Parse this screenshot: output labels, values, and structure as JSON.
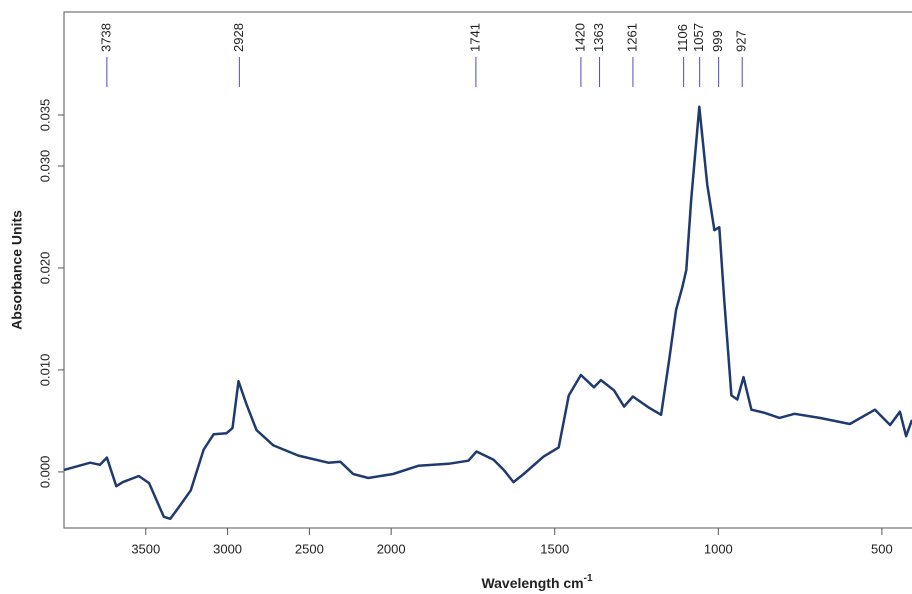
{
  "chart_data": {
    "type": "line",
    "x_label": {
      "text": "Wavelength cm",
      "superscript": "-1"
    },
    "y_label": "Absorbance Units",
    "xlim": [
      4000,
      408
    ],
    "ylim": [
      -0.0055,
      0.0451
    ],
    "x_break": {
      "at": 2000,
      "factor": 0.5
    },
    "xticks": [
      3500,
      3000,
      2500,
      2000,
      1500,
      1000,
      500
    ],
    "yticks": [
      {
        "value": 0,
        "label": "0.000"
      },
      {
        "value": 0.01,
        "label": "0.010"
      },
      {
        "value": 0.02,
        "label": "0.020"
      },
      {
        "value": 0.03,
        "label": "0.030"
      },
      {
        "value": 0.035,
        "label": "0.035"
      }
    ],
    "peaks": [
      3738,
      2928,
      1741,
      1420,
      1363,
      1261,
      1106,
      1057,
      999,
      927
    ],
    "peak_color": "#4b4bc8",
    "series": [
      {
        "color": "#1f3a6e",
        "x": [
          4000,
          3840,
          3780,
          3738,
          3680,
          3640,
          3543,
          3480,
          3390,
          3350,
          3300,
          3225,
          3146,
          3085,
          3006,
          2970,
          2933,
          2884,
          2823,
          2720,
          2567,
          2384,
          2311,
          2232,
          2140,
          1994,
          1917,
          1825,
          1764,
          1739,
          1687,
          1656,
          1626,
          1595,
          1534,
          1488,
          1457,
          1420,
          1380,
          1359,
          1319,
          1288,
          1261,
          1212,
          1175,
          1150,
          1129,
          1110,
          1098,
          1083,
          1058,
          1034,
          1012,
          997,
          982,
          960,
          942,
          923,
          899,
          859,
          813,
          767,
          690,
          598,
          521,
          475,
          445,
          426,
          408
        ],
        "values": [
          0.0002,
          0.0009,
          0.0007,
          0.0014,
          -0.0014,
          -0.001,
          -0.0004,
          -0.0011,
          -0.0044,
          -0.0046,
          -0.0035,
          -0.0018,
          0.0022,
          0.0037,
          0.0038,
          0.0043,
          0.0089,
          0.0066,
          0.0041,
          0.0026,
          0.0016,
          0.0009,
          0.001,
          -0.0002,
          -0.0006,
          -0.0002,
          0.0006,
          0.0008,
          0.0011,
          0.002,
          0.0012,
          0.0002,
          -0.001,
          -0.0002,
          0.0015,
          0.0024,
          0.0075,
          0.0095,
          0.0083,
          0.009,
          0.008,
          0.0064,
          0.0074,
          0.0063,
          0.0056,
          0.011,
          0.0159,
          0.0181,
          0.0198,
          0.0267,
          0.0358,
          0.0282,
          0.0237,
          0.024,
          0.0169,
          0.0075,
          0.0071,
          0.0093,
          0.0061,
          0.0058,
          0.0053,
          0.0057,
          0.0053,
          0.0047,
          0.0061,
          0.0046,
          0.0059,
          0.0035,
          0.0051
        ]
      }
    ]
  }
}
